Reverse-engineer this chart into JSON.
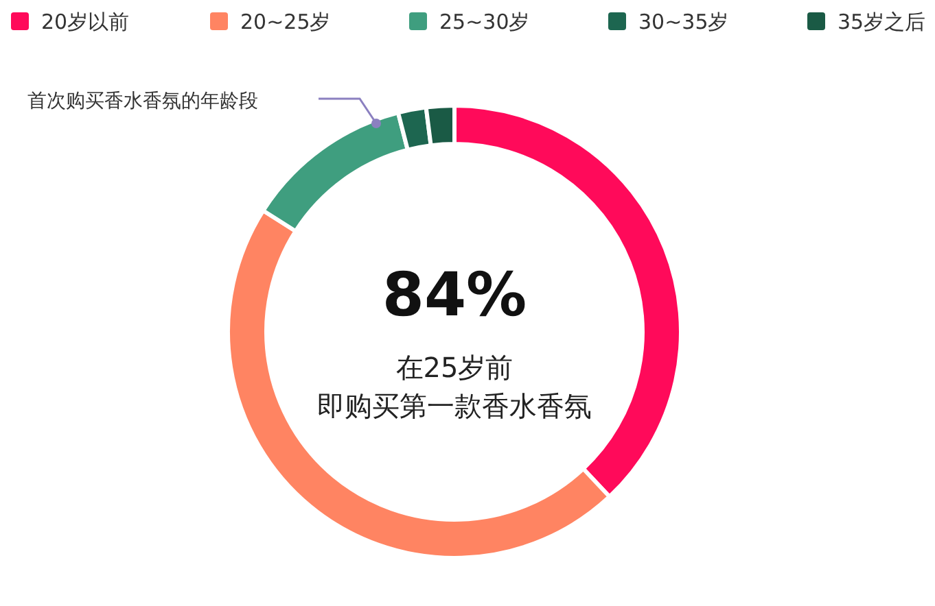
{
  "chart_data": {
    "type": "donut",
    "categories": [
      "20岁以前",
      "20~25岁",
      "25~30岁",
      "30~35岁",
      "35岁之后"
    ],
    "values": [
      38,
      46,
      12,
      2,
      2
    ],
    "colors": [
      "#ff0a5a",
      "#ff8462",
      "#3f9e7f",
      "#1d6650",
      "#1a5a45"
    ],
    "legend": "top",
    "annotations": [
      "首次购买香水香氛的年龄段",
      "84%",
      "在25岁前",
      "即购买第一款香水香氛"
    ]
  }
}
